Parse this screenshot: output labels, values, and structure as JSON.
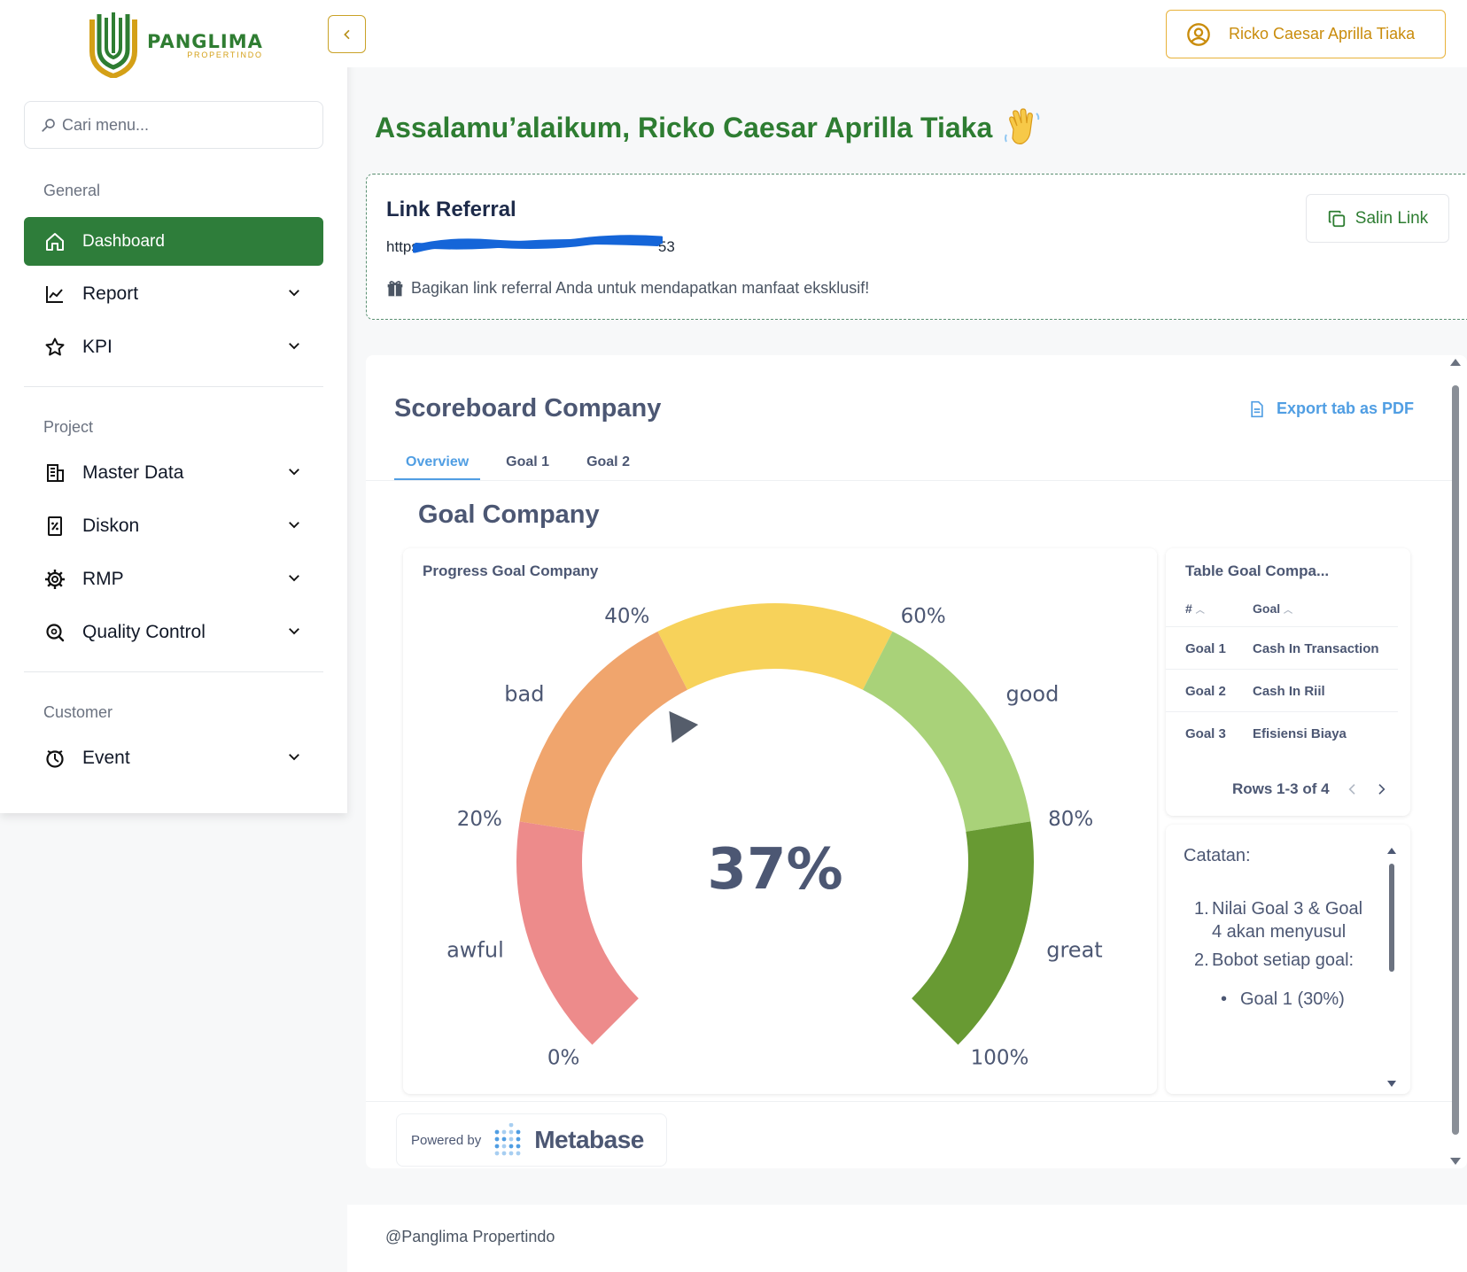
{
  "brand": {
    "name": "PANGLIMA",
    "sub": "PROPERTINDO",
    "green": "#2e7d3a",
    "gold": "#d4a017"
  },
  "sidebar": {
    "search_placeholder": "Cari menu...",
    "sections": [
      {
        "label": "General"
      },
      {
        "label": "Project"
      },
      {
        "label": "Customer"
      }
    ],
    "items": [
      {
        "label": "Dashboard",
        "icon": "home-icon",
        "active": true
      },
      {
        "label": "Report",
        "icon": "line-chart-icon"
      },
      {
        "label": "KPI",
        "icon": "star-icon"
      },
      {
        "label": "Master Data",
        "icon": "building-icon"
      },
      {
        "label": "Diskon",
        "icon": "discount-icon"
      },
      {
        "label": "RMP",
        "icon": "gear-icon"
      },
      {
        "label": "Quality Control",
        "icon": "search-check-icon"
      },
      {
        "label": "Event",
        "icon": "event-icon"
      }
    ]
  },
  "topbar": {
    "user_name": "Ricko Caesar Aprilla Tiaka",
    "accent": "#e8b23a"
  },
  "greeting": {
    "text": "Assalamu’alaikum, Ricko Caesar Aprilla Tiaka",
    "emoji": "👋"
  },
  "referral": {
    "title": "Link Referral",
    "link_start": "https",
    "link_end": "53",
    "note": "Bagikan link referral Anda untuk mendapatkan manfaat eksklusif!",
    "copy_label": "Salin Link"
  },
  "dashboard": {
    "title": "Scoreboard Company",
    "export_label": "Export tab as PDF",
    "tabs": [
      "Overview",
      "Goal 1",
      "Goal 2"
    ],
    "active_tab": "Overview",
    "section_title": "Goal Company",
    "gauge_title": "Progress Goal Company",
    "table": {
      "title": "Table Goal Compa...",
      "columns": [
        "#",
        "Goal"
      ],
      "rows": [
        [
          "Goal 1",
          "Cash In Transaction"
        ],
        [
          "Goal 2",
          "Cash In Riil"
        ],
        [
          "Goal 3",
          "Efisiensi Biaya"
        ]
      ],
      "footer": "Rows 1-3 of 4"
    },
    "notes": {
      "title": "Catatan:",
      "items": [
        "Nilai Goal 3 & Goal 4 akan menyusul",
        "Bobot setiap goal:"
      ],
      "sub_items": [
        "Goal 1 (30%)"
      ]
    },
    "powered_by": "Powered by",
    "powered_brand": "Metabase",
    "accent": "#509ee3"
  },
  "chart_data": {
    "type": "gauge",
    "title": "Progress Goal Company",
    "value": 37,
    "value_label": "37%",
    "min": 0,
    "max": 100,
    "ticks": [
      "0%",
      "20%",
      "40%",
      "60%",
      "80%",
      "100%"
    ],
    "segments": [
      {
        "name": "awful",
        "from": 0,
        "to": 20,
        "color": "#ed8b8b"
      },
      {
        "name": "bad",
        "from": 20,
        "to": 40,
        "color": "#f0a56d"
      },
      {
        "name": "",
        "from": 40,
        "to": 60,
        "color": "#f7d25a"
      },
      {
        "name": "good",
        "from": 60,
        "to": 80,
        "color": "#a9d279"
      },
      {
        "name": "great",
        "from": 80,
        "to": 100,
        "color": "#689a33"
      }
    ]
  },
  "footer": {
    "text": "@Panglima Propertindo"
  }
}
